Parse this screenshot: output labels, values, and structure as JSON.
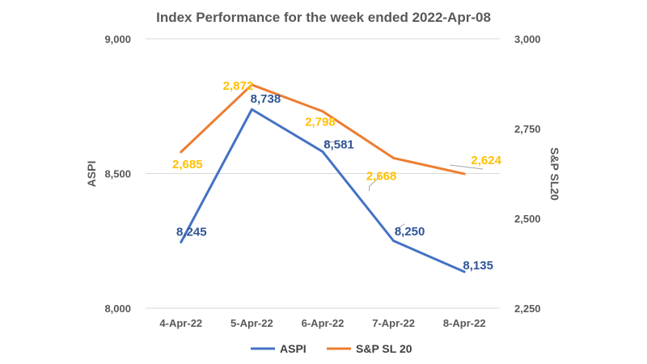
{
  "chart_data": {
    "type": "line",
    "title": "Index Performance for the week ended 2022-Apr-08",
    "categories": [
      "4-Apr-22",
      "5-Apr-22",
      "6-Apr-22",
      "7-Apr-22",
      "8-Apr-22"
    ],
    "series": [
      {
        "name": "ASPI",
        "axis": "left",
        "color": "#4472C4",
        "label_color": "#2F5597",
        "values": [
          8245,
          8738,
          8581,
          8250,
          8135
        ],
        "labels": [
          "8,245",
          "8,738",
          "8,581",
          "8,250",
          "8,135"
        ]
      },
      {
        "name": "S&P SL 20",
        "axis": "right",
        "color": "#ED7D31",
        "label_color": "#FFC000",
        "values": [
          2685,
          2872,
          2798,
          2668,
          2624
        ],
        "labels": [
          "2,685",
          "2,872",
          "2,798",
          "2,668",
          "2,624"
        ]
      }
    ],
    "y_left": {
      "label": "ASPI",
      "lim": [
        8000,
        9000
      ],
      "ticks": [
        8000,
        8500,
        9000
      ],
      "tick_labels": [
        "8,000",
        "8,500",
        "9,000"
      ]
    },
    "y_right": {
      "label": "S&P SL20",
      "lim": [
        2250,
        3000
      ],
      "ticks": [
        2250,
        2500,
        2750,
        3000
      ],
      "tick_labels": [
        "2,250",
        "2,500",
        "2,750",
        "3,000"
      ]
    },
    "grid": true,
    "legend": "bottom",
    "colors": {
      "gridline": "#D9D9D9",
      "leader": "#A6A6A6"
    }
  }
}
